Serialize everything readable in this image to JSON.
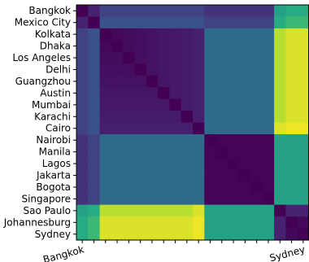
{
  "chart_data": {
    "type": "heatmap",
    "title": "",
    "xlabel": "",
    "ylabel": "",
    "rows": [
      "Bangkok",
      "Mexico City",
      "Kolkata",
      "Dhaka",
      "Los Angeles",
      "Delhi",
      "Guangzhou",
      "Austin",
      "Mumbai",
      "Karachi",
      "Cairo",
      "Nairobi",
      "Manila",
      "Lagos",
      "Jakarta",
      "Bogota",
      "Singapore",
      "Sao Paulo",
      "Johannesburg",
      "Sydney"
    ],
    "x_tick_labels": [
      "Bangkok",
      "",
      "",
      "",
      "",
      "",
      "",
      "",
      "",
      "",
      "",
      "",
      "",
      "",
      "",
      "",
      "",
      "",
      "",
      "Sydney"
    ],
    "colormap": "viridis",
    "value_range": [
      0,
      1
    ],
    "values": [
      [
        0.0,
        0.1,
        0.2,
        0.2,
        0.2,
        0.2,
        0.2,
        0.2,
        0.2,
        0.2,
        0.2,
        0.15,
        0.15,
        0.15,
        0.15,
        0.15,
        0.15,
        0.58,
        0.62,
        0.62
      ],
      [
        0.1,
        0.0,
        0.25,
        0.25,
        0.25,
        0.25,
        0.25,
        0.25,
        0.25,
        0.25,
        0.25,
        0.2,
        0.2,
        0.2,
        0.2,
        0.2,
        0.2,
        0.62,
        0.68,
        0.68
      ],
      [
        0.2,
        0.25,
        0.0,
        0.02,
        0.03,
        0.04,
        0.05,
        0.06,
        0.07,
        0.08,
        0.09,
        0.35,
        0.35,
        0.35,
        0.35,
        0.35,
        0.35,
        0.9,
        0.95,
        0.95
      ],
      [
        0.2,
        0.25,
        0.02,
        0.0,
        0.03,
        0.04,
        0.05,
        0.06,
        0.07,
        0.08,
        0.09,
        0.35,
        0.35,
        0.35,
        0.35,
        0.35,
        0.35,
        0.9,
        0.95,
        0.95
      ],
      [
        0.2,
        0.25,
        0.03,
        0.03,
        0.0,
        0.04,
        0.05,
        0.06,
        0.07,
        0.08,
        0.09,
        0.35,
        0.35,
        0.35,
        0.35,
        0.35,
        0.35,
        0.9,
        0.95,
        0.95
      ],
      [
        0.2,
        0.25,
        0.04,
        0.04,
        0.04,
        0.0,
        0.05,
        0.06,
        0.07,
        0.08,
        0.09,
        0.35,
        0.35,
        0.35,
        0.35,
        0.35,
        0.35,
        0.9,
        0.95,
        0.95
      ],
      [
        0.2,
        0.25,
        0.05,
        0.05,
        0.05,
        0.05,
        0.0,
        0.06,
        0.07,
        0.08,
        0.09,
        0.35,
        0.35,
        0.35,
        0.35,
        0.35,
        0.35,
        0.9,
        0.95,
        0.95
      ],
      [
        0.2,
        0.25,
        0.06,
        0.06,
        0.06,
        0.06,
        0.06,
        0.0,
        0.07,
        0.08,
        0.09,
        0.35,
        0.35,
        0.35,
        0.35,
        0.35,
        0.35,
        0.9,
        0.95,
        0.95
      ],
      [
        0.2,
        0.25,
        0.07,
        0.07,
        0.07,
        0.07,
        0.07,
        0.07,
        0.0,
        0.08,
        0.09,
        0.35,
        0.35,
        0.35,
        0.35,
        0.35,
        0.35,
        0.9,
        0.95,
        0.95
      ],
      [
        0.2,
        0.25,
        0.08,
        0.08,
        0.08,
        0.08,
        0.08,
        0.08,
        0.08,
        0.0,
        0.09,
        0.35,
        0.35,
        0.35,
        0.35,
        0.35,
        0.35,
        0.9,
        0.95,
        0.95
      ],
      [
        0.2,
        0.25,
        0.09,
        0.09,
        0.09,
        0.09,
        0.09,
        0.09,
        0.09,
        0.09,
        0.0,
        0.35,
        0.35,
        0.35,
        0.35,
        0.35,
        0.35,
        0.95,
        0.98,
        0.98
      ],
      [
        0.15,
        0.2,
        0.35,
        0.35,
        0.35,
        0.35,
        0.35,
        0.35,
        0.35,
        0.35,
        0.35,
        0.0,
        0.01,
        0.01,
        0.01,
        0.01,
        0.01,
        0.58,
        0.58,
        0.58
      ],
      [
        0.15,
        0.2,
        0.35,
        0.35,
        0.35,
        0.35,
        0.35,
        0.35,
        0.35,
        0.35,
        0.35,
        0.01,
        0.0,
        0.01,
        0.01,
        0.01,
        0.01,
        0.58,
        0.58,
        0.58
      ],
      [
        0.15,
        0.2,
        0.35,
        0.35,
        0.35,
        0.35,
        0.35,
        0.35,
        0.35,
        0.35,
        0.35,
        0.01,
        0.01,
        0.0,
        0.01,
        0.01,
        0.01,
        0.58,
        0.58,
        0.58
      ],
      [
        0.15,
        0.2,
        0.35,
        0.35,
        0.35,
        0.35,
        0.35,
        0.35,
        0.35,
        0.35,
        0.35,
        0.01,
        0.01,
        0.01,
        0.0,
        0.01,
        0.01,
        0.58,
        0.58,
        0.58
      ],
      [
        0.15,
        0.2,
        0.35,
        0.35,
        0.35,
        0.35,
        0.35,
        0.35,
        0.35,
        0.35,
        0.35,
        0.01,
        0.01,
        0.01,
        0.01,
        0.0,
        0.01,
        0.58,
        0.58,
        0.58
      ],
      [
        0.15,
        0.2,
        0.35,
        0.35,
        0.35,
        0.35,
        0.35,
        0.35,
        0.35,
        0.35,
        0.35,
        0.01,
        0.01,
        0.01,
        0.01,
        0.01,
        0.0,
        0.58,
        0.58,
        0.58
      ],
      [
        0.58,
        0.62,
        0.9,
        0.9,
        0.9,
        0.9,
        0.9,
        0.9,
        0.9,
        0.9,
        0.95,
        0.58,
        0.58,
        0.58,
        0.58,
        0.58,
        0.58,
        0.0,
        0.1,
        0.1
      ],
      [
        0.62,
        0.68,
        0.95,
        0.95,
        0.95,
        0.95,
        0.95,
        0.95,
        0.95,
        0.95,
        0.98,
        0.58,
        0.58,
        0.58,
        0.58,
        0.58,
        0.58,
        0.1,
        0.0,
        0.02
      ],
      [
        0.62,
        0.68,
        0.95,
        0.95,
        0.95,
        0.95,
        0.95,
        0.95,
        0.95,
        0.95,
        0.98,
        0.58,
        0.58,
        0.58,
        0.58,
        0.58,
        0.58,
        0.1,
        0.02,
        0.0
      ]
    ]
  }
}
